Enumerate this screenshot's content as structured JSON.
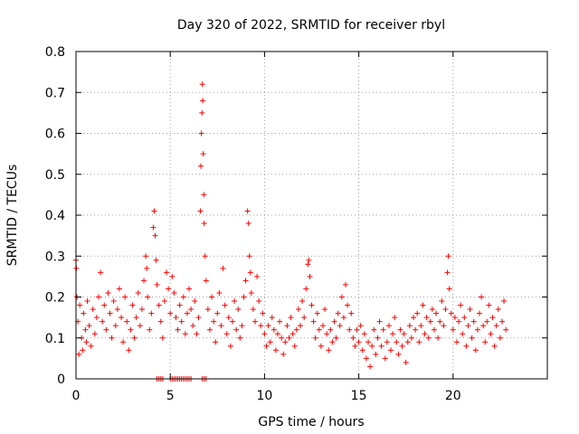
{
  "chart_data": {
    "type": "scatter",
    "title": "Day 320 of 2022, SRMTID for receiver rbyl",
    "xlabel": "GPS time / hours",
    "ylabel": "SRMTID / TECUs",
    "xlim": [
      0,
      25
    ],
    "ylim": [
      0,
      0.8
    ],
    "xticks": [
      0,
      5,
      10,
      15,
      20
    ],
    "yticks": [
      0,
      0.1,
      0.2,
      0.3,
      0.4,
      0.5,
      0.6,
      0.7,
      0.8
    ],
    "xtick_labels": [
      "0",
      "5",
      "10",
      "15",
      "20"
    ],
    "ytick_labels": [
      "0",
      "0.1",
      "0.2",
      "0.3",
      "0.4",
      "0.5",
      "0.6",
      "0.7",
      "0.8"
    ],
    "grid": true,
    "marker": "+",
    "color": "#ff0000",
    "series": [
      {
        "name": "SRMTID",
        "points": [
          [
            0.0,
            0.29
          ],
          [
            0.02,
            0.27
          ],
          [
            0.05,
            0.2
          ],
          [
            0.1,
            0.14
          ],
          [
            0.15,
            0.06
          ],
          [
            0.2,
            0.18
          ],
          [
            0.3,
            0.1
          ],
          [
            0.35,
            0.07
          ],
          [
            0.4,
            0.16
          ],
          [
            0.5,
            0.12
          ],
          [
            0.55,
            0.09
          ],
          [
            0.6,
            0.19
          ],
          [
            0.7,
            0.13
          ],
          [
            0.8,
            0.08
          ],
          [
            0.9,
            0.17
          ],
          [
            1.0,
            0.11
          ],
          [
            1.1,
            0.15
          ],
          [
            1.2,
            0.2
          ],
          [
            1.3,
            0.26
          ],
          [
            1.4,
            0.14
          ],
          [
            1.5,
            0.18
          ],
          [
            1.6,
            0.12
          ],
          [
            1.7,
            0.21
          ],
          [
            1.8,
            0.16
          ],
          [
            1.9,
            0.1
          ],
          [
            2.0,
            0.19
          ],
          [
            2.1,
            0.13
          ],
          [
            2.2,
            0.17
          ],
          [
            2.3,
            0.22
          ],
          [
            2.4,
            0.15
          ],
          [
            2.5,
            0.09
          ],
          [
            2.6,
            0.2
          ],
          [
            2.7,
            0.14
          ],
          [
            2.8,
            0.07
          ],
          [
            2.9,
            0.12
          ],
          [
            3.0,
            0.18
          ],
          [
            3.1,
            0.1
          ],
          [
            3.2,
            0.15
          ],
          [
            3.3,
            0.21
          ],
          [
            3.4,
            0.13
          ],
          [
            3.5,
            0.17
          ],
          [
            3.6,
            0.24
          ],
          [
            3.7,
            0.3
          ],
          [
            3.75,
            0.27
          ],
          [
            3.8,
            0.2
          ],
          [
            3.9,
            0.12
          ],
          [
            4.0,
            0.16
          ],
          [
            4.1,
            0.37
          ],
          [
            4.15,
            0.41
          ],
          [
            4.2,
            0.35
          ],
          [
            4.25,
            0.29
          ],
          [
            4.3,
            0.23
          ],
          [
            4.4,
            0.18
          ],
          [
            4.5,
            0.14
          ],
          [
            4.6,
            0.1
          ],
          [
            4.7,
            0.19
          ],
          [
            4.8,
            0.26
          ],
          [
            4.9,
            0.22
          ],
          [
            5.0,
            0.16
          ],
          [
            5.1,
            0.25
          ],
          [
            5.2,
            0.21
          ],
          [
            5.3,
            0.15
          ],
          [
            5.4,
            0.12
          ],
          [
            5.5,
            0.18
          ],
          [
            5.6,
            0.14
          ],
          [
            5.7,
            0.2
          ],
          [
            5.8,
            0.11
          ],
          [
            5.9,
            0.16
          ],
          [
            6.0,
            0.22
          ],
          [
            6.1,
            0.17
          ],
          [
            6.2,
            0.13
          ],
          [
            6.3,
            0.19
          ],
          [
            6.4,
            0.11
          ],
          [
            6.5,
            0.15
          ],
          [
            6.6,
            0.41
          ],
          [
            6.62,
            0.52
          ],
          [
            6.65,
            0.6
          ],
          [
            6.68,
            0.65
          ],
          [
            6.7,
            0.72
          ],
          [
            6.72,
            0.68
          ],
          [
            6.75,
            0.55
          ],
          [
            6.78,
            0.45
          ],
          [
            6.8,
            0.38
          ],
          [
            6.85,
            0.3
          ],
          [
            6.9,
            0.24
          ],
          [
            7.0,
            0.17
          ],
          [
            7.1,
            0.12
          ],
          [
            7.2,
            0.2
          ],
          [
            7.3,
            0.14
          ],
          [
            7.4,
            0.09
          ],
          [
            7.5,
            0.16
          ],
          [
            7.6,
            0.21
          ],
          [
            7.7,
            0.13
          ],
          [
            7.8,
            0.27
          ],
          [
            7.9,
            0.18
          ],
          [
            8.0,
            0.11
          ],
          [
            8.1,
            0.15
          ],
          [
            8.2,
            0.08
          ],
          [
            8.3,
            0.14
          ],
          [
            8.4,
            0.19
          ],
          [
            8.5,
            0.12
          ],
          [
            8.6,
            0.17
          ],
          [
            8.7,
            0.1
          ],
          [
            8.8,
            0.13
          ],
          [
            8.9,
            0.2
          ],
          [
            9.0,
            0.24
          ],
          [
            9.1,
            0.41
          ],
          [
            9.15,
            0.38
          ],
          [
            9.2,
            0.3
          ],
          [
            9.25,
            0.26
          ],
          [
            9.3,
            0.21
          ],
          [
            9.4,
            0.17
          ],
          [
            9.5,
            0.14
          ],
          [
            9.6,
            0.25
          ],
          [
            9.7,
            0.19
          ],
          [
            9.8,
            0.13
          ],
          [
            9.9,
            0.16
          ],
          [
            10.0,
            0.11
          ],
          [
            10.1,
            0.08
          ],
          [
            10.2,
            0.13
          ],
          [
            10.3,
            0.09
          ],
          [
            10.4,
            0.15
          ],
          [
            10.5,
            0.12
          ],
          [
            10.6,
            0.07
          ],
          [
            10.7,
            0.11
          ],
          [
            10.8,
            0.14
          ],
          [
            10.9,
            0.1
          ],
          [
            11.0,
            0.06
          ],
          [
            11.1,
            0.09
          ],
          [
            11.2,
            0.13
          ],
          [
            11.3,
            0.1
          ],
          [
            11.4,
            0.15
          ],
          [
            11.5,
            0.11
          ],
          [
            11.6,
            0.08
          ],
          [
            11.7,
            0.12
          ],
          [
            11.8,
            0.17
          ],
          [
            11.9,
            0.13
          ],
          [
            12.0,
            0.19
          ],
          [
            12.1,
            0.15
          ],
          [
            12.2,
            0.22
          ],
          [
            12.3,
            0.28
          ],
          [
            12.35,
            0.29
          ],
          [
            12.4,
            0.25
          ],
          [
            12.5,
            0.18
          ],
          [
            12.6,
            0.14
          ],
          [
            12.7,
            0.1
          ],
          [
            12.8,
            0.16
          ],
          [
            12.9,
            0.12
          ],
          [
            13.0,
            0.08
          ],
          [
            13.1,
            0.13
          ],
          [
            13.2,
            0.17
          ],
          [
            13.3,
            0.11
          ],
          [
            13.4,
            0.07
          ],
          [
            13.5,
            0.12
          ],
          [
            13.6,
            0.09
          ],
          [
            13.7,
            0.14
          ],
          [
            13.8,
            0.1
          ],
          [
            13.9,
            0.16
          ],
          [
            14.0,
            0.13
          ],
          [
            14.1,
            0.2
          ],
          [
            14.2,
            0.15
          ],
          [
            14.3,
            0.23
          ],
          [
            14.4,
            0.18
          ],
          [
            14.5,
            0.12
          ],
          [
            14.6,
            0.16
          ],
          [
            14.7,
            0.1
          ],
          [
            14.8,
            0.08
          ],
          [
            14.9,
            0.12
          ],
          [
            15.0,
            0.09
          ],
          [
            15.1,
            0.13
          ],
          [
            15.2,
            0.07
          ],
          [
            15.3,
            0.11
          ],
          [
            15.4,
            0.05
          ],
          [
            15.5,
            0.09
          ],
          [
            15.6,
            0.03
          ],
          [
            15.7,
            0.08
          ],
          [
            15.8,
            0.12
          ],
          [
            15.9,
            0.06
          ],
          [
            16.0,
            0.1
          ],
          [
            16.1,
            0.14
          ],
          [
            16.2,
            0.08
          ],
          [
            16.3,
            0.12
          ],
          [
            16.4,
            0.05
          ],
          [
            16.5,
            0.09
          ],
          [
            16.6,
            0.13
          ],
          [
            16.7,
            0.07
          ],
          [
            16.8,
            0.11
          ],
          [
            16.9,
            0.15
          ],
          [
            17.0,
            0.09
          ],
          [
            17.1,
            0.06
          ],
          [
            17.2,
            0.12
          ],
          [
            17.3,
            0.08
          ],
          [
            17.4,
            0.11
          ],
          [
            17.5,
            0.04
          ],
          [
            17.6,
            0.09
          ],
          [
            17.7,
            0.13
          ],
          [
            17.8,
            0.1
          ],
          [
            17.9,
            0.15
          ],
          [
            18.0,
            0.12
          ],
          [
            18.1,
            0.16
          ],
          [
            18.2,
            0.09
          ],
          [
            18.3,
            0.13
          ],
          [
            18.4,
            0.18
          ],
          [
            18.5,
            0.11
          ],
          [
            18.6,
            0.15
          ],
          [
            18.7,
            0.1
          ],
          [
            18.8,
            0.14
          ],
          [
            18.9,
            0.17
          ],
          [
            19.0,
            0.12
          ],
          [
            19.1,
            0.16
          ],
          [
            19.2,
            0.1
          ],
          [
            19.3,
            0.14
          ],
          [
            19.4,
            0.19
          ],
          [
            19.5,
            0.13
          ],
          [
            19.6,
            0.17
          ],
          [
            19.7,
            0.26
          ],
          [
            19.75,
            0.3
          ],
          [
            19.8,
            0.22
          ],
          [
            19.9,
            0.16
          ],
          [
            20.0,
            0.12
          ],
          [
            20.1,
            0.15
          ],
          [
            20.2,
            0.09
          ],
          [
            20.3,
            0.14
          ],
          [
            20.4,
            0.18
          ],
          [
            20.5,
            0.11
          ],
          [
            20.6,
            0.15
          ],
          [
            20.7,
            0.08
          ],
          [
            20.8,
            0.13
          ],
          [
            20.9,
            0.17
          ],
          [
            21.0,
            0.1
          ],
          [
            21.1,
            0.14
          ],
          [
            21.2,
            0.07
          ],
          [
            21.3,
            0.12
          ],
          [
            21.4,
            0.16
          ],
          [
            21.5,
            0.2
          ],
          [
            21.6,
            0.13
          ],
          [
            21.7,
            0.09
          ],
          [
            21.8,
            0.14
          ],
          [
            21.9,
            0.18
          ],
          [
            22.0,
            0.11
          ],
          [
            22.1,
            0.15
          ],
          [
            22.2,
            0.08
          ],
          [
            22.3,
            0.13
          ],
          [
            22.4,
            0.17
          ],
          [
            22.5,
            0.1
          ],
          [
            22.6,
            0.14
          ],
          [
            22.7,
            0.19
          ],
          [
            22.8,
            0.12
          ],
          [
            4.3,
            0.0
          ],
          [
            4.4,
            0.0
          ],
          [
            4.5,
            0.0
          ],
          [
            4.6,
            0.0
          ],
          [
            5.0,
            0.0
          ],
          [
            5.1,
            0.0
          ],
          [
            5.2,
            0.0
          ],
          [
            5.3,
            0.0
          ],
          [
            5.4,
            0.0
          ],
          [
            5.5,
            0.0
          ],
          [
            5.6,
            0.0
          ],
          [
            5.7,
            0.0
          ],
          [
            5.8,
            0.0
          ],
          [
            5.9,
            0.0
          ],
          [
            6.0,
            0.0
          ],
          [
            6.1,
            0.0
          ],
          [
            6.7,
            0.0
          ],
          [
            6.8,
            0.0
          ],
          [
            6.9,
            0.0
          ]
        ]
      }
    ]
  }
}
